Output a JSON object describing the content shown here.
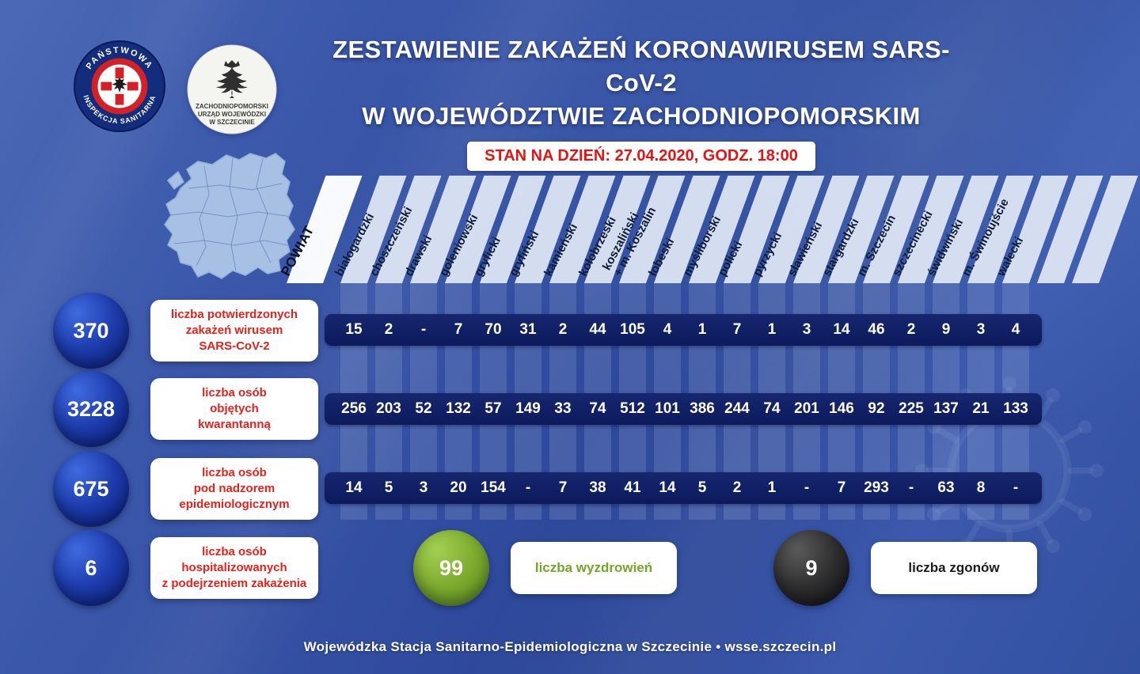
{
  "header": {
    "title_line1": "ZESTAWIENIE ZAKAŻEŃ KORONAWIRUSEM SARS-CoV-2",
    "title_line2": "W WOJEWÓDZTWIE ZACHODNIOPOMORSKIM",
    "date_banner": "STAN NA DZIEŃ: 27.04.2020, GODZ. 18:00"
  },
  "logos": {
    "sanitary_inspection": {
      "arc_top": "PAŃSTWOWA",
      "arc_bottom": "INSPEKCJA SANITARNA"
    },
    "voivodeship_office": {
      "line1": "ZACHODNIOPOMORSKI",
      "line2": "URZĄD WOJEWÓDZKI",
      "line3": "W SZCZECINIE"
    }
  },
  "table": {
    "corner_label": "POWIAT",
    "columns": [
      "białogardzki",
      "choszczeński",
      "drawski",
      "goleniowski",
      "gryficki",
      "gryfiński",
      "kamieński",
      "kołobrzeski",
      "koszaliński\n+ m. Koszalin",
      "łobeski",
      "myśliborski",
      "policki",
      "pyrzycki",
      "sławieński",
      "stargardzki",
      "m. Szczecin",
      "szczecinecki",
      "świdwiński",
      "m. Świnoujście",
      "wałecki"
    ],
    "rows": [
      {
        "name": "confirmed",
        "total": "370",
        "label": "liczba potwierdzonych\nzakażeń wirusem\nSARS-CoV-2",
        "values": [
          "15",
          "2",
          "-",
          "7",
          "70",
          "31",
          "2",
          "44",
          "105",
          "4",
          "1",
          "7",
          "1",
          "3",
          "14",
          "46",
          "2",
          "9",
          "3",
          "4"
        ]
      },
      {
        "name": "quarantine",
        "total": "3228",
        "label": "liczba osób\nobjętych\nkwarantanną",
        "values": [
          "256",
          "203",
          "52",
          "132",
          "57",
          "149",
          "33",
          "74",
          "512",
          "101",
          "386",
          "244",
          "74",
          "201",
          "146",
          "92",
          "225",
          "137",
          "21",
          "133"
        ]
      },
      {
        "name": "surveillance",
        "total": "675",
        "label": "liczba osób\npod nadzorem\nepidemiologicznym",
        "values": [
          "14",
          "5",
          "3",
          "20",
          "154",
          "-",
          "7",
          "38",
          "41",
          "14",
          "5",
          "2",
          "1",
          "-",
          "7",
          "293",
          "-",
          "63",
          "8",
          "-"
        ]
      }
    ]
  },
  "stats": {
    "hospitalized": {
      "total": "6",
      "label": "liczba osób\nhospitalizowanych\nz podejrzeniem zakażenia"
    },
    "recovered": {
      "total": "99",
      "label": "liczba wyzdrowień"
    },
    "deaths": {
      "total": "9",
      "label": "liczba zgonów"
    }
  },
  "footer": {
    "text": "Wojewódzka Stacja Sanitarno-Epidemiologiczna w Szczecinie  •  wsse.szczecin.pl"
  },
  "colors": {
    "accent_red": "#e4211c",
    "navy_bar": "#0c1a5c",
    "green": "#76a82c",
    "circle_blue": "#1e3dae",
    "dark_circle": "#1c1c1c"
  },
  "chart_data": {
    "type": "table",
    "title": "Zestawienie zakażeń koronawirusem SARS-CoV-2 w województwie zachodniopomorskim",
    "as_of": "27.04.2020, godz. 18:00",
    "categories": [
      "białogardzki",
      "choszczeński",
      "drawski",
      "goleniowski",
      "gryficki",
      "gryfiński",
      "kamieński",
      "kołobrzeski",
      "koszaliński + m. Koszalin",
      "łobeski",
      "myśliborski",
      "policki",
      "pyrzycki",
      "sławieński",
      "stargardzki",
      "m. Szczecin",
      "szczecinecki",
      "świdwiński",
      "m. Świnoujście",
      "wałecki"
    ],
    "series": [
      {
        "name": "liczba potwierdzonych zakażeń wirusem SARS-CoV-2",
        "total": 370,
        "values": [
          15,
          2,
          null,
          7,
          70,
          31,
          2,
          44,
          105,
          4,
          1,
          7,
          1,
          3,
          14,
          46,
          2,
          9,
          3,
          4
        ]
      },
      {
        "name": "liczba osób objętych kwarantanną",
        "total": 3228,
        "values": [
          256,
          203,
          52,
          132,
          57,
          149,
          33,
          74,
          512,
          101,
          386,
          244,
          74,
          201,
          146,
          92,
          225,
          137,
          21,
          133
        ]
      },
      {
        "name": "liczba osób pod nadzorem epidemiologicznym",
        "total": 675,
        "values": [
          14,
          5,
          3,
          20,
          154,
          null,
          7,
          38,
          41,
          14,
          5,
          2,
          1,
          null,
          7,
          293,
          null,
          63,
          8,
          null
        ]
      }
    ],
    "summary": {
      "hospitalized_with_suspected_infection": 6,
      "recoveries": 99,
      "deaths": 9
    }
  }
}
